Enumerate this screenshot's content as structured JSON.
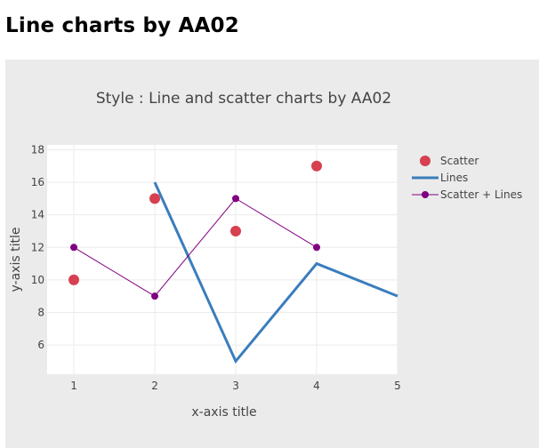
{
  "page": {
    "title": "Line charts by AA02"
  },
  "chart_data": {
    "type": "line",
    "title": "Style : Line and scatter charts by AA02",
    "xlabel": "x-axis title",
    "ylabel": "y-axis title",
    "xlim": [
      0.67,
      5
    ],
    "ylim": [
      4.2,
      18.3
    ],
    "x_ticks": [
      1,
      2,
      3,
      4,
      5
    ],
    "y_ticks": [
      6,
      8,
      10,
      12,
      14,
      16,
      18
    ],
    "grid": true,
    "legend_position": "right",
    "series": [
      {
        "name": "Scatter",
        "mode": "markers",
        "color": "#d6404f",
        "x": [
          1,
          2,
          3,
          4
        ],
        "y": [
          10,
          15,
          13,
          17
        ]
      },
      {
        "name": "Lines",
        "mode": "lines",
        "color": "#3a7dbd",
        "x": [
          2,
          3,
          4,
          5
        ],
        "y": [
          16,
          5,
          11,
          9
        ]
      },
      {
        "name": "Scatter + Lines",
        "mode": "lines+markers",
        "color": "#800080",
        "x": [
          1,
          2,
          3,
          4
        ],
        "y": [
          12,
          9,
          15,
          12
        ]
      }
    ]
  }
}
